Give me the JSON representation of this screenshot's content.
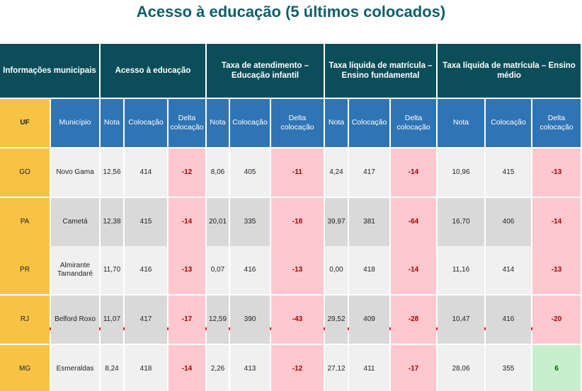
{
  "title": "Acesso à educação (5 últimos colocados)",
  "header": {
    "groups": [
      "Informações municipais",
      "Acesso à educação",
      "Taxa de atendimento – Educação infantil",
      "Taxa líquida de matrícula – Ensino fundamental",
      "Taxa líquida de matrícula – Ensino médio"
    ],
    "columns": [
      "UF",
      "Município",
      "Nota",
      "Colocação",
      "Delta colocação",
      "Nota",
      "Colocação",
      "Delta colocação",
      "Nota",
      "Colocação",
      "Delta colocação",
      "Nota",
      "Colocação",
      "Delta colocação"
    ]
  },
  "table": {
    "rows": [
      [
        "GO",
        "Novo Gama",
        "12,56",
        "414",
        "-12",
        "8,06",
        "405",
        "-11",
        "4,24",
        "417",
        "-14",
        "10,96",
        "415",
        "-13"
      ],
      [
        "PA",
        "Cametá",
        "12,38",
        "415",
        "-14",
        "20,01",
        "335",
        "-18",
        "39,97",
        "381",
        "-64",
        "16,70",
        "406",
        "-14"
      ],
      [
        "PR",
        "Almirante Tamandaré",
        "11,70",
        "416",
        "-13",
        "0,07",
        "416",
        "-13",
        "0,00",
        "418",
        "-14",
        "11,16",
        "414",
        "-13"
      ],
      [
        "RJ",
        "Belford Roxo",
        "11,07",
        "417",
        "-17",
        "12,59",
        "390",
        "-43",
        "29,52",
        "409",
        "-28",
        "10,47",
        "416",
        "-20"
      ],
      [
        "MG",
        "Esmeraldas",
        "8,24",
        "418",
        "-14",
        "2,26",
        "413",
        "-12",
        "27,12",
        "411",
        "-17",
        "28,06",
        "355",
        "6"
      ]
    ]
  }
}
